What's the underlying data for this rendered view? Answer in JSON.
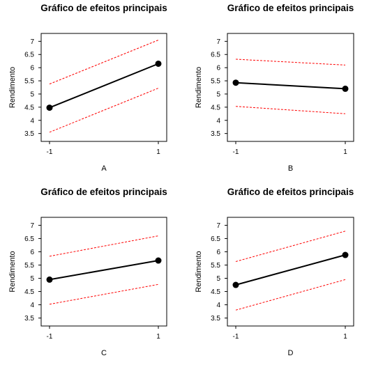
{
  "chart_data": [
    {
      "type": "line",
      "title": "Gráfico de efeitos principais",
      "xlabel": "A",
      "ylabel": "Rendimento",
      "x": [
        -1,
        1
      ],
      "x_ticks": [
        "-1",
        "1"
      ],
      "y_ticks": [
        "3.5",
        "4",
        "4.5",
        "5",
        "5.5",
        "6",
        "6.5",
        "7"
      ],
      "ylim": [
        3.2,
        7.3
      ],
      "grid": false,
      "series": [
        {
          "values": [
            4.48,
            6.15
          ],
          "style": "solid",
          "color": "#000000",
          "markers": true
        },
        {
          "values": [
            3.55,
            5.22
          ],
          "style": "dashed",
          "color": "#ff0000",
          "markers": false
        },
        {
          "values": [
            5.38,
            7.05
          ],
          "style": "dashed",
          "color": "#ff0000",
          "markers": false
        }
      ]
    },
    {
      "type": "line",
      "title": "Gráfico de efeitos principais",
      "xlabel": "B",
      "ylabel": "Rendimento",
      "x": [
        -1,
        1
      ],
      "x_ticks": [
        "-1",
        "1"
      ],
      "y_ticks": [
        "3.5",
        "4",
        "4.5",
        "5",
        "5.5",
        "6",
        "6.5",
        "7"
      ],
      "ylim": [
        3.2,
        7.3
      ],
      "grid": false,
      "series": [
        {
          "values": [
            5.43,
            5.2
          ],
          "style": "solid",
          "color": "#000000",
          "markers": true
        },
        {
          "values": [
            4.53,
            4.25
          ],
          "style": "dashed",
          "color": "#ff0000",
          "markers": false
        },
        {
          "values": [
            6.32,
            6.1
          ],
          "style": "dashed",
          "color": "#ff0000",
          "markers": false
        }
      ]
    },
    {
      "type": "line",
      "title": "Gráfico de efeitos principais",
      "xlabel": "C",
      "ylabel": "Rendimento",
      "x": [
        -1,
        1
      ],
      "x_ticks": [
        "-1",
        "1"
      ],
      "y_ticks": [
        "3.5",
        "4",
        "4.5",
        "5",
        "5.5",
        "6",
        "6.5",
        "7"
      ],
      "ylim": [
        3.2,
        7.3
      ],
      "grid": false,
      "series": [
        {
          "values": [
            4.95,
            5.67
          ],
          "style": "solid",
          "color": "#000000",
          "markers": true
        },
        {
          "values": [
            4.02,
            4.77
          ],
          "style": "dashed",
          "color": "#ff0000",
          "markers": false
        },
        {
          "values": [
            5.83,
            6.6
          ],
          "style": "dashed",
          "color": "#ff0000",
          "markers": false
        }
      ]
    },
    {
      "type": "line",
      "title": "Gráfico de efeitos principais",
      "xlabel": "D",
      "ylabel": "Rendimento",
      "x": [
        -1,
        1
      ],
      "x_ticks": [
        "-1",
        "1"
      ],
      "y_ticks": [
        "3.5",
        "4",
        "4.5",
        "5",
        "5.5",
        "6",
        "6.5",
        "7"
      ],
      "ylim": [
        3.2,
        7.3
      ],
      "grid": false,
      "series": [
        {
          "values": [
            4.75,
            5.88
          ],
          "style": "solid",
          "color": "#000000",
          "markers": true
        },
        {
          "values": [
            3.8,
            4.95
          ],
          "style": "dashed",
          "color": "#ff0000",
          "markers": false
        },
        {
          "values": [
            5.63,
            6.78
          ],
          "style": "dashed",
          "color": "#ff0000",
          "markers": false
        }
      ]
    }
  ]
}
